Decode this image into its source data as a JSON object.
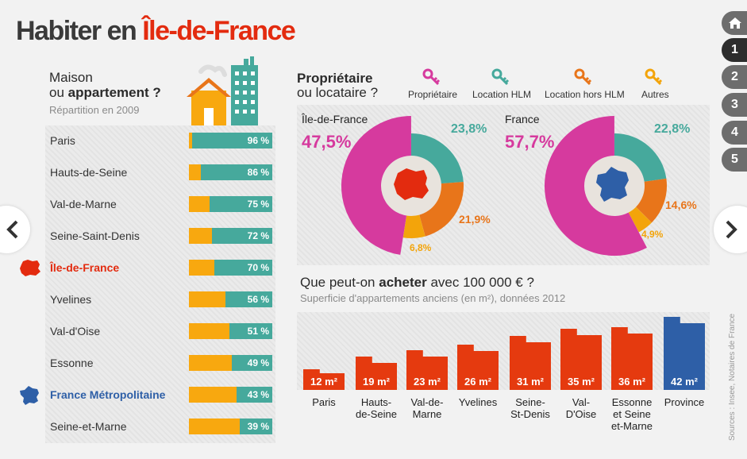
{
  "title": {
    "part1": "Habiter en ",
    "part2": "Île-de-France"
  },
  "nav": {
    "home_icon": "home-icon",
    "pages": [
      "1",
      "2",
      "3",
      "4",
      "5"
    ],
    "active": "1"
  },
  "housing": {
    "line1": "Maison",
    "line2_a": "ou ",
    "line2_b": "appartement ?",
    "subtitle": "Répartition en 2009",
    "colors": {
      "maison": "#f8a80f",
      "appartement": "#46a99c"
    },
    "rows": [
      {
        "label": "Paris",
        "appartement_pct": 96,
        "pct_label": "96 %"
      },
      {
        "label": "Hauts-de-Seine",
        "appartement_pct": 86,
        "pct_label": "86 %"
      },
      {
        "label": "Val-de-Marne",
        "appartement_pct": 75,
        "pct_label": "75 %"
      },
      {
        "label": "Seine-Saint-Denis",
        "appartement_pct": 72,
        "pct_label": "72 %"
      },
      {
        "label": "Île-de-France",
        "appartement_pct": 70,
        "pct_label": "70 %"
      },
      {
        "label": "Yvelines",
        "appartement_pct": 56,
        "pct_label": "56 %"
      },
      {
        "label": "Val-d'Oise",
        "appartement_pct": 51,
        "pct_label": "51 %"
      },
      {
        "label": "Essonne",
        "appartement_pct": 49,
        "pct_label": "49 %"
      },
      {
        "label": "France Métropolitaine",
        "appartement_pct": 43,
        "pct_label": "43 %"
      },
      {
        "label": "Seine-et-Marne",
        "appartement_pct": 39,
        "pct_label": "39 %"
      }
    ]
  },
  "tenure": {
    "line1": "Propriétaire",
    "line2": "ou locataire ?",
    "legend": [
      {
        "label": "Propriétaire",
        "color": "#d63a9e"
      },
      {
        "label": "Location HLM",
        "color": "#46a99c"
      },
      {
        "label": "Location hors HLM",
        "color": "#e8751a"
      },
      {
        "label": "Autres",
        "color": "#f3a40a"
      }
    ],
    "idf": {
      "label": "Île-de-France",
      "proprietaire": "47,5%",
      "hlm": "23,8%",
      "hors_hlm": "21,9%",
      "autres": "6,8%"
    },
    "france": {
      "label": "France",
      "proprietaire": "57,7%",
      "hlm": "22,8%",
      "hors_hlm": "14,6%",
      "autres": "4,9%"
    }
  },
  "chart_data": [
    {
      "type": "bar",
      "title": "Maison ou appartement ?",
      "subtitle": "Répartition en 2009",
      "categories": [
        "Paris",
        "Hauts-de-Seine",
        "Val-de-Marne",
        "Seine-Saint-Denis",
        "Île-de-France",
        "Yvelines",
        "Val-d'Oise",
        "Essonne",
        "France Métropolitaine",
        "Seine-et-Marne"
      ],
      "series": [
        {
          "values": [
            96,
            86,
            75,
            72,
            70,
            56,
            51,
            49,
            43,
            39
          ]
        }
      ]
    },
    {
      "type": "pie",
      "title": "Île-de-France",
      "categories": [
        "Propriétaire",
        "Location HLM",
        "Location hors HLM",
        "Autres"
      ],
      "values": [
        47.5,
        23.8,
        21.9,
        6.8
      ]
    },
    {
      "type": "pie",
      "title": "France",
      "categories": [
        "Propriétaire",
        "Location HLM",
        "Location hors HLM",
        "Autres"
      ],
      "values": [
        57.7,
        22.8,
        14.6,
        4.9
      ]
    },
    {
      "type": "bar",
      "title": "Que peut-on acheter avec 100 000 € ?",
      "subtitle": "Superficie d'appartements anciens (en m²), données 2012",
      "categories": [
        "Paris",
        "Hauts-de-Seine",
        "Val-de-Marne",
        "Yvelines",
        "Seine-St-Denis",
        "Val-D'Oise",
        "Essonne et Seine et-Marne",
        "Province"
      ],
      "values": [
        12,
        19,
        23,
        26,
        31,
        35,
        36,
        42
      ],
      "value_labels": [
        "12 m²",
        "19 m²",
        "23 m²",
        "26 m²",
        "31 m²",
        "35 m²",
        "36 m²",
        "42 m²"
      ],
      "city_lines": [
        [
          "Paris"
        ],
        [
          "Hauts-",
          "de-Seine"
        ],
        [
          "Val-de-",
          "Marne"
        ],
        [
          "Yvelines"
        ],
        [
          "Seine-",
          "St-Denis"
        ],
        [
          "Val-",
          "D'Oise"
        ],
        [
          "Essonne",
          "et Seine",
          "et-Marne"
        ],
        [
          "Province"
        ]
      ],
      "colors": {
        "idf": "#e53a0f",
        "province": "#2e5fa7"
      }
    }
  ],
  "purchase": {
    "q_a": "Que peut-on ",
    "q_b": "acheter",
    "q_c": " avec 100 000 € ?",
    "subtitle": "Superficie d'appartements anciens (en m²), données 2012"
  },
  "sources": "Sources : Insee, Notaires de France",
  "arrows": {
    "prev": "chevron-left-icon",
    "next": "chevron-right-icon"
  }
}
